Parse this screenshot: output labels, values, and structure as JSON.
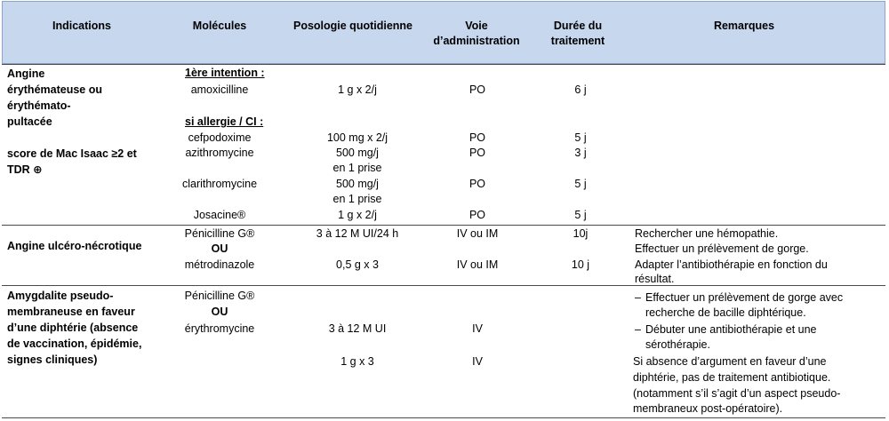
{
  "headers": {
    "indications": "Indications",
    "molecules": "Molécules",
    "posologie": "Posologie quotidienne",
    "voie": "Voie d’administration",
    "duree": "Durée du traitement",
    "remarques": "Remarques"
  },
  "row1": {
    "indication_l1": "Angine",
    "indication_l2": "érythémateuse ou",
    "indication_l3": "érythémato-",
    "indication_l4": "pultacée",
    "indication_l5": "score de Mac Isaac ≥2 et",
    "indication_l6": "TDR ⊕",
    "first_intention": "1ère intention :",
    "allergy": "si allergie / CI :",
    "drugs": [
      {
        "mol": "amoxicilline",
        "dose": "1 g  x 2/j",
        "voie": "PO",
        "duree": "6 j"
      },
      {
        "mol": "cefpodoxime",
        "dose": "100 mg x 2/j",
        "voie": "PO",
        "duree": "5 j"
      },
      {
        "mol": "azithromycine",
        "dose": "500 mg/j",
        "dose2": "en 1 prise",
        "voie": "PO",
        "duree": "3 j"
      },
      {
        "mol": "clarithromycine",
        "dose": "500 mg/j",
        "dose2": "en 1 prise",
        "voie": "PO",
        "duree": "5 j"
      },
      {
        "mol": "Josacine®",
        "dose": "1 g x 2/j",
        "voie": "PO",
        "duree": "5 j"
      }
    ]
  },
  "row2": {
    "indication": "Angine ulcéro-nécrotique",
    "mol1": "Pénicilline G®",
    "ou": "OU",
    "mol2": "métrodinazole",
    "dose1": "3 à 12 M UI/24 h",
    "dose2": "0,5 g x 3",
    "voie1": "IV ou IM",
    "voie2": "IV ou IM",
    "duree1": "10j",
    "duree2": "10 j",
    "rem1": "Rechercher une hémopathie.",
    "rem2": "Effectuer un prélèvement de gorge.",
    "rem3": "Adapter l’antibiothérapie en fonction du",
    "rem4": "résultat."
  },
  "row3": {
    "ind_l1": "Amygdalite pseudo-",
    "ind_l2": "membraneuse en faveur",
    "ind_l3": "d’une diphtérie (absence",
    "ind_l4": "de vaccination, épidémie,",
    "ind_l5": "signes cliniques)",
    "mol1": "Pénicilline G®",
    "ou": "OU",
    "mol2": "érythromycine",
    "dose1": "3 à 12 M UI",
    "dose2": "1 g x 3",
    "voie1": "IV",
    "voie2": "IV",
    "rem_b1_l1": "Effectuer un prélèvement de gorge avec",
    "rem_b1_l2": "recherche de bacille diphtérique.",
    "rem_b2_l1": "Débuter une antibiothérapie et une",
    "rem_b2_l2": "sérothérapie.",
    "rem3": "Si absence d’argument en faveur d’une",
    "rem4": "diphtérie, pas de traitement antibiotique.",
    "rem5": "(notamment s’il s’agit d’un aspect pseudo-",
    "rem6": "membraneux post-opératoire)."
  }
}
